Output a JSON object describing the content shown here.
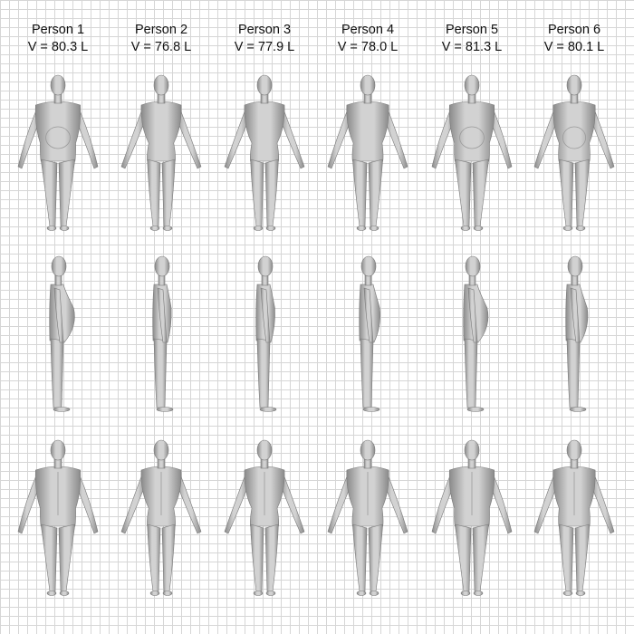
{
  "persons": [
    {
      "name": "Person 1",
      "volume": "V = 80.3 L",
      "build": "heavy",
      "belly": 1.0
    },
    {
      "name": "Person 2",
      "volume": "V = 76.8 L",
      "build": "lean",
      "belly": 0.15
    },
    {
      "name": "Person 3",
      "volume": "V = 77.9 L",
      "build": "lean",
      "belly": 0.2
    },
    {
      "name": "Person 4",
      "volume": "V = 78.0 L",
      "build": "medium",
      "belly": 0.45
    },
    {
      "name": "Person 5",
      "volume": "V = 81.3 L",
      "build": "heavy",
      "belly": 0.95
    },
    {
      "name": "Person 6",
      "volume": "V = 80.1 L",
      "build": "medium",
      "belly": 0.6
    }
  ],
  "views": [
    "front",
    "side",
    "back"
  ],
  "colors": {
    "background": "#ffffff",
    "grid_minor": "#d6d6d6",
    "grid_major": "#a9a9a9",
    "body_light": "#d2d2d2",
    "body_dark": "#8a8a8a"
  }
}
